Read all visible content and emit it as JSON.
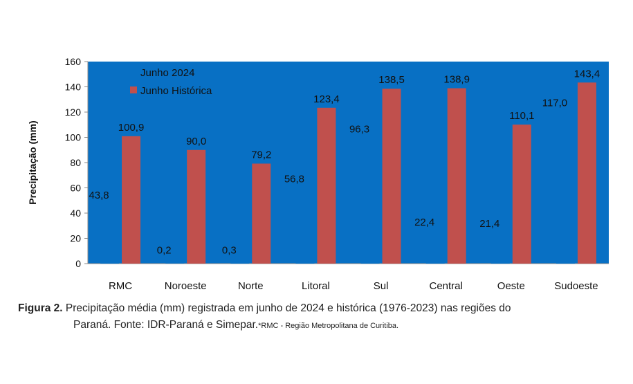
{
  "chart_data": {
    "type": "bar",
    "title": "",
    "xlabel": "",
    "ylabel": "Precipitação (mm)",
    "ylim": [
      0,
      160
    ],
    "yticks": [
      0,
      20,
      40,
      60,
      80,
      100,
      120,
      140,
      160
    ],
    "grid": false,
    "legend": "top-left",
    "categories": [
      "RMC",
      "Noroeste",
      "Norte",
      "Litoral",
      "Sul",
      "Central",
      "Oeste",
      "Sudoeste"
    ],
    "series": [
      {
        "name": "Junho 2024",
        "values": [
          43.8,
          0.2,
          0.3,
          56.8,
          96.3,
          22.4,
          21.4,
          117.0
        ],
        "labels": [
          "43,8",
          "0,2",
          "0,3",
          "56,8",
          "96,3",
          "22,4",
          "21,4",
          "117,0"
        ],
        "color": "#0870c4"
      },
      {
        "name": "Junho Histórica",
        "values": [
          100.9,
          90.0,
          79.2,
          123.4,
          138.5,
          138.9,
          110.1,
          143.4
        ],
        "labels": [
          "100,9",
          "90,0",
          "79,2",
          "123,4",
          "138,5",
          "138,9",
          "110,1",
          "143,4"
        ],
        "color": "#c0504d"
      }
    ],
    "plot_background": "#0870c4"
  },
  "caption": {
    "figure_label": "Figura 2.",
    "line1": " Precipitação média (mm)  registrada em  junho de 2024  e histórica (1976-2023) nas regiões do",
    "line2": "Paraná. Fonte: IDR-Paraná e Simepar.",
    "note": "*RMC - Região Metropolitana de Curitiba."
  }
}
